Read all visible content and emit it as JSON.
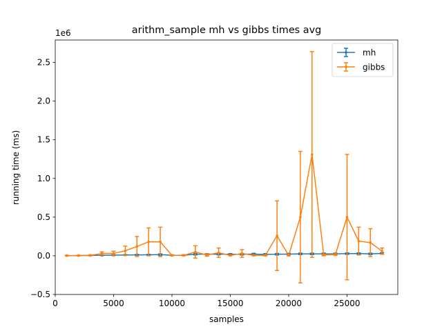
{
  "chart_data": {
    "type": "line",
    "title": "arithm_sample mh vs gibbs times avg",
    "xlabel": "samples",
    "ylabel": "running time (ms)",
    "y_offset_label": "1e6",
    "xlim": [
      0,
      29350
    ],
    "ylim": [
      -0.5,
      2.79
    ],
    "x_ticks": [
      0,
      5000,
      10000,
      15000,
      20000,
      25000
    ],
    "y_ticks": [
      -0.5,
      0.0,
      0.5,
      1.0,
      1.5,
      2.0,
      2.5
    ],
    "y_tick_labels": [
      "−0.5",
      "0.0",
      "0.5",
      "1.0",
      "1.5",
      "2.0",
      "2.5"
    ],
    "grid": false,
    "legend_position": "top-right",
    "x": [
      1000,
      2000,
      3000,
      4000,
      5000,
      6000,
      7000,
      8000,
      9000,
      10000,
      11000,
      12000,
      13000,
      14000,
      15000,
      16000,
      17000,
      18000,
      19000,
      20000,
      21000,
      22000,
      23000,
      24000,
      25000,
      26000,
      27000,
      28000
    ],
    "series": [
      {
        "name": "mh",
        "color": "#1f77b4",
        "values": [
          0.002,
          0.003,
          0.005,
          0.007,
          0.008,
          0.01,
          0.012,
          0.013,
          0.015,
          0.006,
          0.007,
          0.02,
          0.02,
          0.022,
          0.018,
          0.02,
          0.022,
          0.018,
          0.02,
          0.022,
          0.025,
          0.025,
          0.025,
          0.025,
          0.028,
          0.028,
          0.025,
          0.03
        ],
        "errors": [
          0.002,
          0.003,
          0.003,
          0.005,
          0.005,
          0.005,
          0.005,
          0.006,
          0.01,
          0.004,
          0.005,
          0.01,
          0.008,
          0.01,
          0.01,
          0.01,
          0.01,
          0.01,
          0.01,
          0.01,
          0.01,
          0.01,
          0.01,
          0.01,
          0.01,
          0.01,
          0.01,
          0.01
        ]
      },
      {
        "name": "gibbs",
        "color": "#ff7f0e",
        "values": [
          0.002,
          0.003,
          0.005,
          0.03,
          0.03,
          0.065,
          0.12,
          0.18,
          0.18,
          0.005,
          0.005,
          0.05,
          0.01,
          0.04,
          0.005,
          0.03,
          0.005,
          0.005,
          0.26,
          0.005,
          0.5,
          1.31,
          0.01,
          0.015,
          0.5,
          0.19,
          0.17,
          0.06
        ],
        "errors": [
          0.002,
          0.004,
          0.006,
          0.02,
          0.03,
          0.06,
          0.13,
          0.18,
          0.19,
          0.005,
          0.005,
          0.08,
          0.015,
          0.06,
          0.005,
          0.05,
          0.005,
          0.006,
          0.45,
          0.005,
          0.85,
          1.33,
          0.01,
          0.01,
          0.81,
          0.18,
          0.18,
          0.04
        ]
      }
    ]
  }
}
